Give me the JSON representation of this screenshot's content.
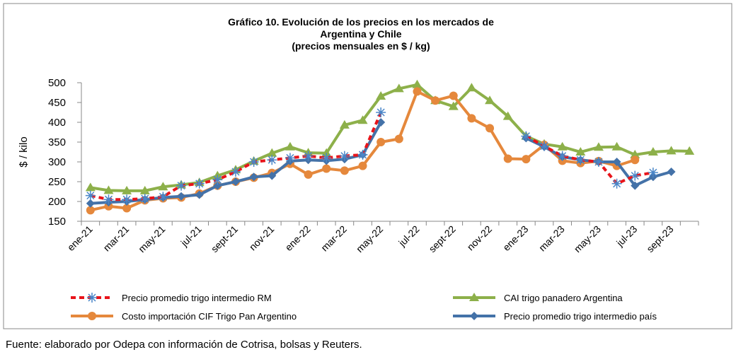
{
  "chart_data": {
    "type": "line",
    "title": [
      "Gráfico 10. Evolución de los precios en los mercados de",
      "Argentina y Chile",
      "(precios mensuales en $ / kg)"
    ],
    "ylabel": "$ / kilo",
    "source": "Fuente: elaborado por Odepa con información de Cotrisa, bolsas y Reuters.",
    "categories": [
      "ene-21",
      null,
      "mar-21",
      null,
      "may-21",
      null,
      "jul-21",
      null,
      "sept-21",
      null,
      "nov-21",
      null,
      "ene-22",
      null,
      "mar-22",
      null,
      "may-22",
      null,
      "jul-22",
      null,
      "sept-22",
      null,
      "nov-22",
      null,
      "ene-23",
      null,
      "mar-23",
      null,
      "may-23",
      null,
      "jul-23",
      null,
      "sept-23",
      null
    ],
    "ylim": [
      150,
      500
    ],
    "yticks": [
      150,
      200,
      250,
      300,
      350,
      400,
      450,
      500
    ],
    "series": [
      {
        "name": "Precio promedio trigo intermedio RM",
        "color": "#e8141a",
        "marker": "asterisk",
        "dashed": true,
        "values": [
          215,
          205,
          205,
          207,
          212,
          240,
          245,
          255,
          275,
          300,
          305,
          310,
          315,
          310,
          315,
          318,
          425,
          null,
          null,
          null,
          null,
          null,
          null,
          null,
          365,
          340,
          315,
          305,
          300,
          245,
          265,
          273,
          null,
          null
        ]
      },
      {
        "name": "CAI trigo panadero Argentina",
        "color": "#8db04a",
        "marker": "triangle",
        "values": [
          235,
          228,
          227,
          227,
          237,
          242,
          248,
          265,
          280,
          302,
          322,
          338,
          323,
          322,
          393,
          405,
          466,
          485,
          495,
          455,
          440,
          487,
          455,
          415,
          365,
          345,
          338,
          325,
          337,
          338,
          318,
          325,
          328,
          327
        ]
      },
      {
        "name": "Costo importación CIF Trigo Pan Argentino",
        "color": "#e5883c",
        "marker": "circle",
        "values": [
          178,
          188,
          183,
          203,
          208,
          210,
          220,
          240,
          250,
          260,
          272,
          295,
          268,
          283,
          278,
          290,
          350,
          358,
          478,
          455,
          467,
          410,
          385,
          308,
          307,
          343,
          303,
          297,
          302,
          290,
          305,
          null,
          null,
          null
        ]
      },
      {
        "name": "Precio promedio trigo intermedio país",
        "color": "#4472a8",
        "marker": "diamond",
        "values": [
          195,
          198,
          200,
          205,
          210,
          213,
          217,
          240,
          250,
          262,
          265,
          302,
          305,
          303,
          307,
          318,
          400,
          null,
          null,
          null,
          null,
          null,
          null,
          null,
          360,
          338,
          313,
          305,
          300,
          300,
          240,
          262,
          275,
          null
        ]
      }
    ]
  }
}
